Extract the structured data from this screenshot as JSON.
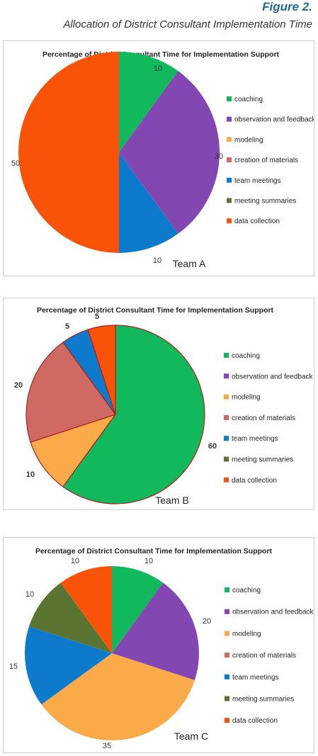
{
  "figure": {
    "label": "Figure 2.",
    "caption": "Allocation of District Consultant Implementation Time"
  },
  "colors": {
    "coaching": "#12b85c",
    "observation": "#8247b0",
    "modeling": "#fbaa4a",
    "creation": "#cf6a62",
    "team_meetings": "#0e7acb",
    "meeting_summaries": "#5a7431",
    "data_collection": "#f9530a"
  },
  "chart_data": [
    {
      "type": "pie",
      "title": "Percentage of District Consultant Time for Implementation Support",
      "team": "Team A",
      "categories": [
        "coaching",
        "observation and feedback",
        "modeling",
        "creation of materials",
        "team meetings",
        "meeting summaries",
        "data collection"
      ],
      "values": [
        10,
        30,
        0,
        0,
        10,
        0,
        50
      ],
      "value_labels": [
        "10",
        "30",
        "",
        "",
        "10",
        "",
        "50"
      ],
      "label_style": "normal",
      "slice_border": "none"
    },
    {
      "type": "pie",
      "title": "Percentage of District Consultant Time for Implementation Support",
      "team": "Team B",
      "categories": [
        "coaching",
        "observation and feedback",
        "modeling",
        "creation of materials",
        "team meetings",
        "meeting summaries",
        "data collection"
      ],
      "values": [
        60,
        0,
        10,
        20,
        5,
        0,
        5
      ],
      "value_labels": [
        "60",
        "",
        "10",
        "20",
        "5",
        "",
        "5"
      ],
      "label_style": "bold",
      "slice_border": "dark-red"
    },
    {
      "type": "pie",
      "title": "Percentage of District Consultant Time for Implementation Support",
      "team": "Team C",
      "categories": [
        "coaching",
        "observation and feedback",
        "modeling",
        "creation of materials",
        "team meetings",
        "meeting summaries",
        "data collection"
      ],
      "values": [
        10,
        20,
        35,
        0,
        15,
        10,
        10
      ],
      "value_labels": [
        "10",
        "20",
        "35",
        "",
        "15",
        "10",
        "10"
      ],
      "label_style": "normal",
      "slice_border": "none"
    }
  ]
}
